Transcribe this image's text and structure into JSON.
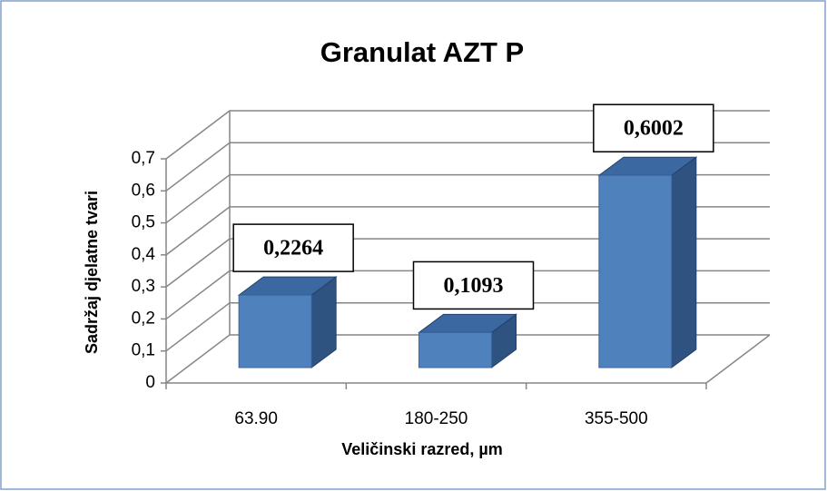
{
  "chart_data": {
    "type": "bar3d",
    "title": "Granulat AZT P",
    "x_label": "Veličinski razred, µm",
    "y_label": "Sadržaj djelatne tvari",
    "categories": [
      "63.90",
      "180-250",
      "355-500"
    ],
    "values": [
      0.2264,
      0.1093,
      0.6002
    ],
    "value_labels": [
      "0,2264",
      "0,1093",
      "0,6002"
    ],
    "color": "#4f81bd",
    "ylim": [
      0,
      0.7
    ],
    "yticks": [
      0,
      {
        "value": 0.1,
        "label": "0,1"
      },
      {
        "value": 0.2,
        "label": "0,2"
      },
      {
        "value": 0.3,
        "label": "0,3"
      },
      {
        "value": 0.4,
        "label": "0,4"
      },
      {
        "value": 0.5,
        "label": "0,5"
      },
      {
        "value": 0.6,
        "label": "0,6"
      },
      {
        "value": 0.7,
        "label": "0,7"
      }
    ],
    "grid": true
  }
}
